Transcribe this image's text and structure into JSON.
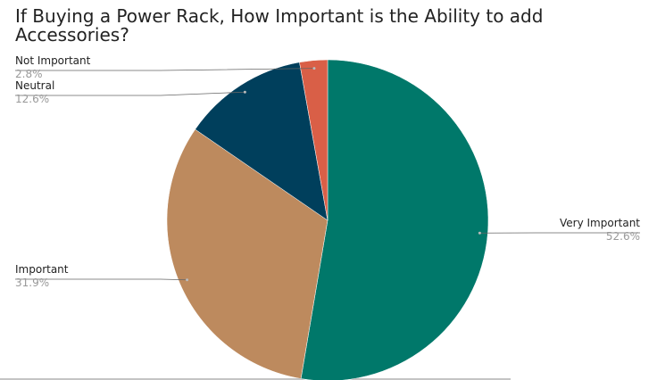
{
  "chart_data": {
    "type": "pie",
    "title": "If Buying a Power Rack, How Important is the Ability to add Accessories?",
    "categories": [
      "Very Important",
      "Important",
      "Neutral",
      "Not Important"
    ],
    "values": [
      52.6,
      31.9,
      12.6,
      2.8
    ],
    "value_labels": [
      "52.6%",
      "31.9%",
      "12.6%",
      "2.8%"
    ],
    "colors": [
      "#00786a",
      "#bd8a5e",
      "#003f5c",
      "#d95f47"
    ]
  }
}
